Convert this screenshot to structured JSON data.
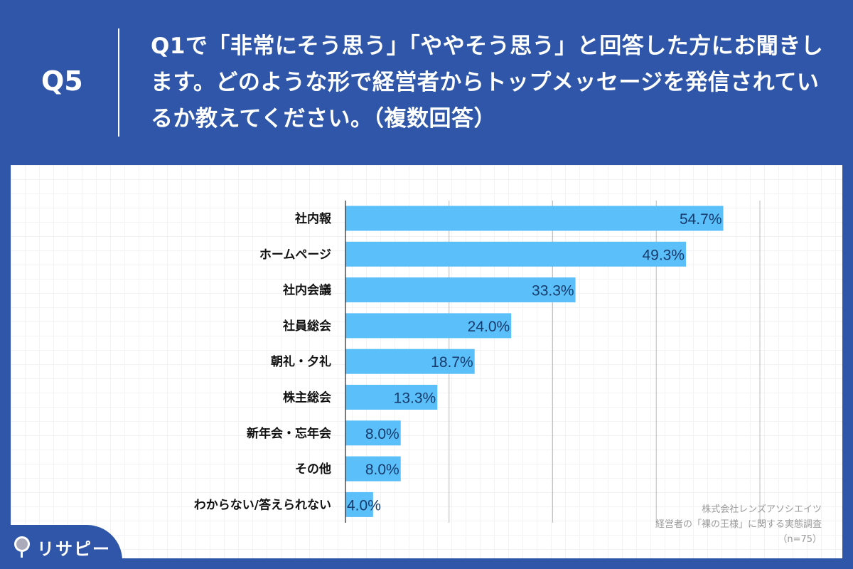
{
  "header": {
    "question_number": "Q5",
    "question_text": "Q1で「非常にそう思う」「ややそう思う」と回答した方にお聞きします。どのような形で経営者からトップメッセージを発信されているか教えてください。（複数回答）"
  },
  "chart_data": {
    "type": "bar",
    "orientation": "horizontal",
    "categories": [
      "社内報",
      "ホームページ",
      "社内会議",
      "社員総会",
      "朝礼・夕礼",
      "株主総会",
      "新年会・忘年会",
      "その他",
      "わからない/答えられない"
    ],
    "values": [
      54.7,
      49.3,
      33.3,
      24.0,
      18.7,
      13.3,
      8.0,
      8.0,
      4.0
    ],
    "value_labels": [
      "54.7%",
      "49.3%",
      "33.3%",
      "24.0%",
      "18.7%",
      "13.3%",
      "8.0%",
      "8.0%",
      "4.0%"
    ],
    "xlim": [
      0,
      60
    ],
    "grid": true,
    "gridlines": [
      15,
      30,
      45,
      60
    ],
    "bar_color": "#5bbff9"
  },
  "source": {
    "company": "株式会社レンズアソシエイツ",
    "survey": "経営者の「裸の王様」に関する実態調査",
    "n": "（n=75）"
  },
  "logo": {
    "text": "リサピー"
  }
}
